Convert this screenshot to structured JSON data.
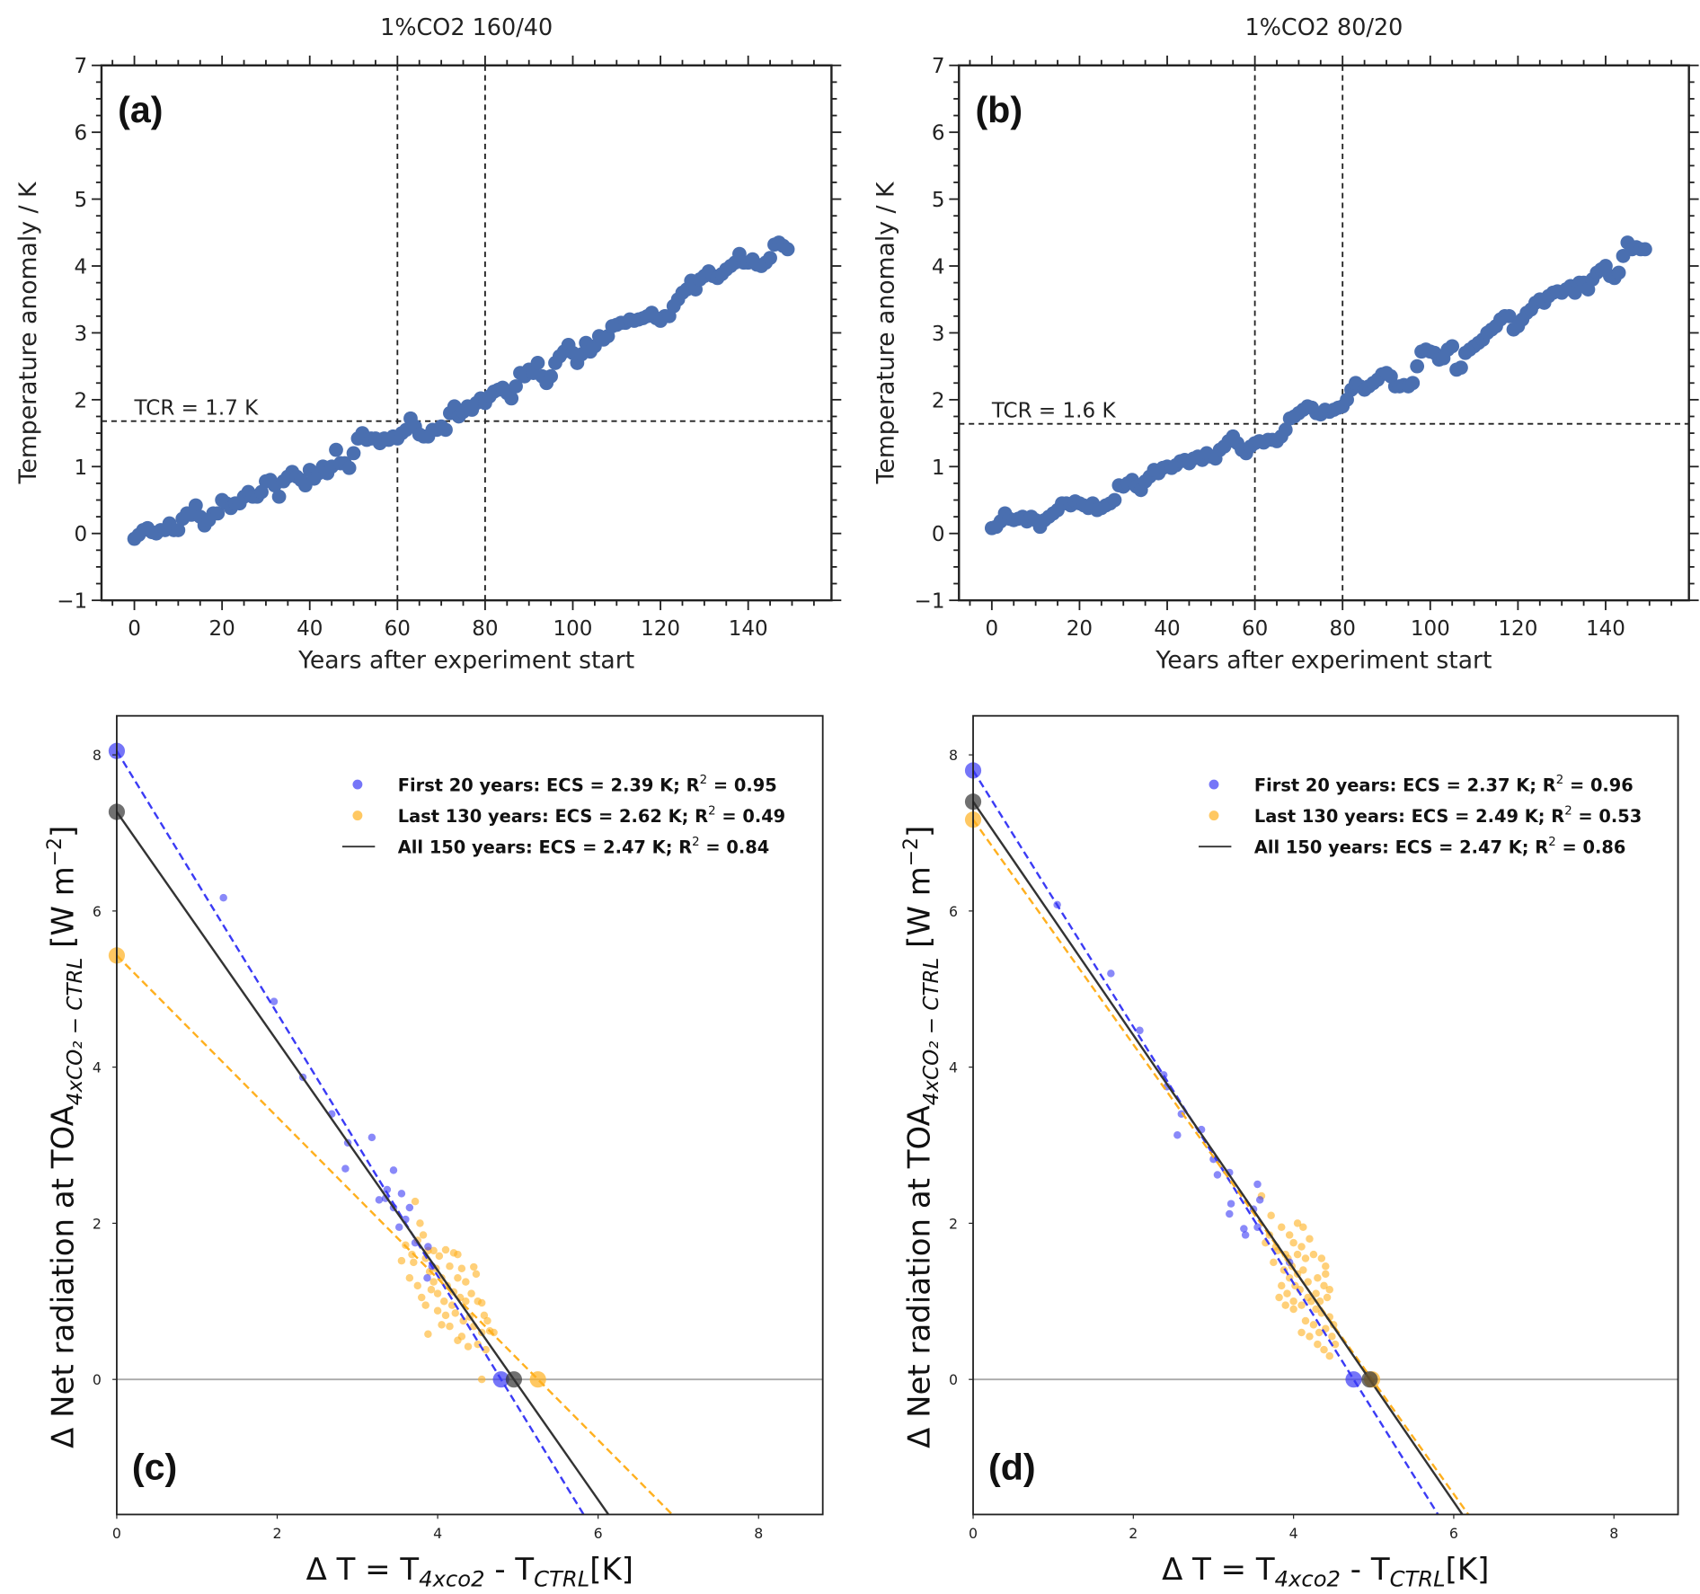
{
  "chart_data": [
    {
      "id": "a",
      "type": "scatter",
      "panel_label": "(a)",
      "title": "1%CO2 160/40",
      "xlabel": "Years after experiment start",
      "ylabel": "Temperature anomaly / K",
      "xlim": [
        -7.5,
        159
      ],
      "ylim": [
        -1,
        7
      ],
      "xticks": [
        0,
        20,
        40,
        60,
        80,
        100,
        120,
        140
      ],
      "yticks": [
        -1,
        0,
        1,
        2,
        3,
        4,
        5,
        6,
        7
      ],
      "ytick_labels": [
        "−1",
        "0",
        "1",
        "2",
        "3",
        "4",
        "5",
        "6",
        "7"
      ],
      "color": "#4a6fb0",
      "vlines": [
        60,
        80
      ],
      "hline": 1.68,
      "annotation": "TCR = 1.7 K",
      "values": [
        -0.08,
        -0.02,
        0.05,
        0.08,
        0.02,
        0.0,
        0.05,
        0.05,
        0.15,
        0.05,
        0.05,
        0.22,
        0.3,
        0.28,
        0.42,
        0.25,
        0.12,
        0.2,
        0.3,
        0.3,
        0.5,
        0.45,
        0.38,
        0.45,
        0.45,
        0.55,
        0.62,
        0.55,
        0.55,
        0.62,
        0.78,
        0.8,
        0.72,
        0.55,
        0.78,
        0.85,
        0.92,
        0.85,
        0.8,
        0.72,
        0.95,
        0.82,
        0.9,
        1.0,
        0.9,
        1.0,
        1.25,
        1.05,
        1.05,
        0.98,
        1.2,
        1.42,
        1.5,
        1.4,
        1.42,
        1.42,
        1.35,
        1.42,
        1.4,
        1.45,
        1.42,
        1.5,
        1.55,
        1.72,
        1.6,
        1.48,
        1.45,
        1.45,
        1.55,
        1.55,
        1.6,
        1.55,
        1.8,
        1.9,
        1.75,
        1.82,
        1.9,
        1.85,
        1.95,
        2.02,
        1.95,
        2.05,
        2.12,
        2.15,
        2.18,
        2.1,
        2.02,
        2.2,
        2.4,
        2.35,
        2.45,
        2.4,
        2.55,
        2.35,
        2.25,
        2.35,
        2.55,
        2.65,
        2.72,
        2.82,
        2.7,
        2.55,
        2.68,
        2.85,
        2.72,
        2.8,
        2.95,
        2.9,
        2.95,
        3.1,
        3.12,
        3.15,
        3.15,
        3.2,
        3.18,
        3.2,
        3.22,
        3.25,
        3.3,
        3.22,
        3.18,
        3.25,
        3.25,
        3.4,
        3.5,
        3.6,
        3.65,
        3.78,
        3.65,
        3.8,
        3.85,
        3.92,
        3.85,
        3.82,
        3.88,
        3.95,
        4.0,
        4.05,
        4.18,
        4.05,
        4.05,
        4.1,
        4.02,
        4.0,
        4.05,
        4.12,
        4.32,
        4.35,
        4.3,
        4.25
      ]
    },
    {
      "id": "b",
      "type": "scatter",
      "panel_label": "(b)",
      "title": "1%CO2 80/20",
      "xlabel": "Years after experiment start",
      "ylabel": "Temperature anomaly / K",
      "xlim": [
        -7.5,
        159
      ],
      "ylim": [
        -1,
        7
      ],
      "xticks": [
        0,
        20,
        40,
        60,
        80,
        100,
        120,
        140
      ],
      "yticks": [
        -1,
        0,
        1,
        2,
        3,
        4,
        5,
        6,
        7
      ],
      "ytick_labels": [
        "−1",
        "0",
        "1",
        "2",
        "3",
        "4",
        "5",
        "6",
        "7"
      ],
      "color": "#4a6fb0",
      "vlines": [
        60,
        80
      ],
      "hline": 1.64,
      "annotation": "TCR = 1.6 K",
      "values": [
        0.08,
        0.1,
        0.18,
        0.3,
        0.22,
        0.2,
        0.22,
        0.25,
        0.18,
        0.25,
        0.2,
        0.1,
        0.2,
        0.25,
        0.3,
        0.35,
        0.45,
        0.45,
        0.42,
        0.48,
        0.45,
        0.42,
        0.38,
        0.45,
        0.35,
        0.38,
        0.42,
        0.45,
        0.5,
        0.72,
        0.7,
        0.75,
        0.8,
        0.7,
        0.65,
        0.78,
        0.85,
        0.95,
        0.9,
        0.98,
        1.0,
        0.98,
        1.02,
        1.08,
        1.1,
        1.05,
        1.12,
        1.15,
        1.1,
        1.2,
        1.15,
        1.12,
        1.25,
        1.3,
        1.38,
        1.45,
        1.35,
        1.25,
        1.2,
        1.3,
        1.35,
        1.38,
        1.36,
        1.4,
        1.4,
        1.38,
        1.45,
        1.55,
        1.72,
        1.75,
        1.8,
        1.85,
        1.9,
        1.88,
        1.8,
        1.78,
        1.85,
        1.82,
        1.85,
        1.88,
        1.9,
        2.0,
        2.15,
        2.25,
        2.2,
        2.15,
        2.2,
        2.25,
        2.3,
        2.38,
        2.4,
        2.35,
        2.2,
        2.2,
        2.22,
        2.2,
        2.25,
        2.5,
        2.72,
        2.75,
        2.72,
        2.7,
        2.6,
        2.62,
        2.75,
        2.8,
        2.45,
        2.48,
        2.7,
        2.75,
        2.8,
        2.85,
        2.9,
        3.0,
        3.05,
        3.1,
        3.2,
        3.25,
        3.25,
        3.05,
        3.1,
        3.2,
        3.3,
        3.35,
        3.45,
        3.5,
        3.45,
        3.55,
        3.6,
        3.62,
        3.6,
        3.65,
        3.7,
        3.6,
        3.75,
        3.75,
        3.65,
        3.8,
        3.9,
        3.95,
        4.0,
        3.85,
        3.82,
        3.9,
        4.15,
        4.35,
        4.25,
        4.28,
        4.25,
        4.25
      ]
    },
    {
      "id": "c",
      "type": "scatter",
      "panel_label": "(c)",
      "xlabel": {
        "pre": "Δ T = T",
        "sub1": "4xco2",
        "mid": " - T",
        "sub2": "CTRL",
        "post": "[K]"
      },
      "ylabel": {
        "pre": "Δ Net radiation at TOA",
        "sub": "4xCO₂ − CTRL",
        "post": " [W m",
        "sup": "−2",
        "end": "]"
      },
      "xlim": [
        0,
        8.8
      ],
      "ylim": [
        -1.73,
        8.5
      ],
      "xticks": [
        0,
        2,
        4,
        6,
        8
      ],
      "yticks": [
        0,
        2,
        4,
        6,
        8
      ],
      "zero_line_color": "#aaaaaa",
      "legend": {
        "placement": "top-right",
        "entries": [
          {
            "text": "First 20 years: ECS = 2.39 K; R",
            "sup": "2",
            "tail": " = 0.95",
            "color": "#3b3bf5",
            "kind": "marker"
          },
          {
            "text": "Last 130 years: ECS = 2.62 K; R",
            "sup": "2",
            "tail": " = 0.49",
            "color": "#ffb01f",
            "kind": "marker"
          },
          {
            "text": "All 150 years: ECS = 2.47 K; R",
            "sup": "2",
            "tail": " = 0.84",
            "color": "#333333",
            "kind": "line"
          }
        ]
      },
      "fits": [
        {
          "name": "First 20 years",
          "intercept": 8.05,
          "x_at_zero": 4.79,
          "color": "#3b3bf5",
          "dashed": true
        },
        {
          "name": "Last 130 years",
          "intercept": 5.43,
          "x_at_zero": 5.25,
          "color": "#ffb01f",
          "dashed": true
        },
        {
          "name": "All 150 years",
          "intercept": 7.27,
          "x_at_zero": 4.95,
          "color": "#333333",
          "dashed": false
        }
      ],
      "first20": [
        [
          1.33,
          6.17
        ],
        [
          1.96,
          4.84
        ],
        [
          2.32,
          3.87
        ],
        [
          2.68,
          3.4
        ],
        [
          2.88,
          3.03
        ],
        [
          2.85,
          2.7
        ],
        [
          3.18,
          3.1
        ],
        [
          3.27,
          2.3
        ],
        [
          3.37,
          2.43
        ],
        [
          3.45,
          2.68
        ],
        [
          3.55,
          2.38
        ],
        [
          3.45,
          2.2
        ],
        [
          3.65,
          2.2
        ],
        [
          3.52,
          1.95
        ],
        [
          3.72,
          1.75
        ],
        [
          3.88,
          1.7
        ],
        [
          3.87,
          1.3
        ],
        [
          3.93,
          1.45
        ],
        [
          3.35,
          2.32
        ],
        [
          3.6,
          2.05
        ]
      ],
      "last130": [
        [
          3.72,
          2.28
        ],
        [
          3.78,
          2.0
        ],
        [
          3.6,
          1.72
        ],
        [
          3.75,
          1.78
        ],
        [
          3.82,
          1.85
        ],
        [
          3.88,
          1.65
        ],
        [
          3.55,
          1.52
        ],
        [
          3.7,
          1.5
        ],
        [
          3.85,
          1.55
        ],
        [
          3.95,
          1.65
        ],
        [
          4.02,
          1.58
        ],
        [
          4.1,
          1.66
        ],
        [
          4.2,
          1.62
        ],
        [
          4.25,
          1.6
        ],
        [
          3.65,
          1.3
        ],
        [
          3.75,
          1.2
        ],
        [
          3.9,
          1.38
        ],
        [
          3.98,
          1.42
        ],
        [
          4.05,
          1.3
        ],
        [
          4.12,
          1.2
        ],
        [
          4.15,
          1.45
        ],
        [
          4.3,
          1.42
        ],
        [
          4.45,
          1.44
        ],
        [
          4.48,
          1.35
        ],
        [
          3.8,
          1.05
        ],
        [
          3.92,
          1.15
        ],
        [
          4.0,
          1.1
        ],
        [
          4.08,
          1.0
        ],
        [
          4.2,
          1.12
        ],
        [
          4.28,
          1.05
        ],
        [
          4.35,
          1.0
        ],
        [
          4.5,
          1.0
        ],
        [
          4.55,
          0.98
        ],
        [
          3.85,
          0.95
        ],
        [
          4.0,
          0.88
        ],
        [
          4.1,
          0.82
        ],
        [
          4.22,
          0.85
        ],
        [
          4.32,
          0.75
        ],
        [
          4.4,
          0.8
        ],
        [
          4.45,
          0.68
        ],
        [
          4.58,
          0.82
        ],
        [
          4.62,
          0.75
        ],
        [
          4.7,
          0.6
        ],
        [
          3.88,
          0.58
        ],
        [
          4.05,
          0.7
        ],
        [
          4.15,
          0.68
        ],
        [
          4.25,
          0.5
        ],
        [
          4.3,
          0.55
        ],
        [
          4.38,
          0.42
        ],
        [
          4.5,
          0.45
        ],
        [
          4.6,
          0.38
        ],
        [
          4.55,
          0.6
        ],
        [
          4.18,
          0.95
        ],
        [
          4.42,
          1.1
        ],
        [
          4.35,
          1.25
        ],
        [
          3.95,
          1.25
        ],
        [
          3.68,
          1.6
        ],
        [
          4.55,
          0.0
        ],
        [
          4.65,
          0.62
        ],
        [
          4.25,
          1.3
        ]
      ]
    },
    {
      "id": "d",
      "type": "scatter",
      "panel_label": "(d)",
      "xlabel": {
        "pre": "Δ T = T",
        "sub1": "4xco2",
        "mid": " - T",
        "sub2": "CTRL",
        "post": "[K]"
      },
      "ylabel": {
        "pre": "Δ Net radiation at TOA",
        "sub": "4xCO₂ − CTRL",
        "post": " [W m",
        "sup": "−2",
        "end": "]"
      },
      "xlim": [
        0,
        8.8
      ],
      "ylim": [
        -1.73,
        8.5
      ],
      "xticks": [
        0,
        2,
        4,
        6,
        8
      ],
      "yticks": [
        0,
        2,
        4,
        6,
        8
      ],
      "zero_line_color": "#aaaaaa",
      "legend": {
        "placement": "top-right",
        "entries": [
          {
            "text": "First 20 years: ECS = 2.37 K; R",
            "sup": "2",
            "tail": " = 0.96",
            "color": "#3b3bf5",
            "kind": "marker"
          },
          {
            "text": "Last 130 years: ECS = 2.49 K; R",
            "sup": "2",
            "tail": " = 0.53",
            "color": "#ffb01f",
            "kind": "marker"
          },
          {
            "text": "All 150 years: ECS = 2.47 K; R",
            "sup": "2",
            "tail": " = 0.86",
            "color": "#333333",
            "kind": "line"
          }
        ]
      },
      "fits": [
        {
          "name": "First 20 years",
          "intercept": 7.8,
          "x_at_zero": 4.75,
          "color": "#3b3bf5",
          "dashed": true
        },
        {
          "name": "Last 130 years",
          "intercept": 7.17,
          "x_at_zero": 4.98,
          "color": "#ffb01f",
          "dashed": true
        },
        {
          "name": "All 150 years",
          "intercept": 7.4,
          "x_at_zero": 4.95,
          "color": "#333333",
          "dashed": false
        }
      ],
      "first20": [
        [
          1.05,
          6.08
        ],
        [
          1.72,
          5.2
        ],
        [
          2.08,
          4.47
        ],
        [
          2.38,
          3.9
        ],
        [
          2.42,
          3.75
        ],
        [
          2.55,
          3.13
        ],
        [
          2.6,
          3.4
        ],
        [
          2.85,
          3.2
        ],
        [
          3.0,
          2.82
        ],
        [
          3.05,
          2.62
        ],
        [
          3.2,
          2.65
        ],
        [
          3.22,
          2.25
        ],
        [
          3.2,
          2.12
        ],
        [
          3.38,
          1.93
        ],
        [
          3.4,
          1.85
        ],
        [
          3.5,
          2.18
        ],
        [
          3.55,
          2.5
        ],
        [
          3.58,
          2.3
        ],
        [
          3.55,
          1.95
        ],
        [
          3.95,
          1.5
        ]
      ],
      "last130": [
        [
          3.6,
          2.35
        ],
        [
          3.72,
          2.1
        ],
        [
          3.85,
          1.95
        ],
        [
          3.95,
          1.85
        ],
        [
          4.05,
          2.0
        ],
        [
          4.12,
          1.95
        ],
        [
          3.65,
          1.75
        ],
        [
          3.8,
          1.65
        ],
        [
          3.9,
          1.6
        ],
        [
          4.0,
          1.75
        ],
        [
          4.1,
          1.7
        ],
        [
          4.2,
          1.8
        ],
        [
          3.75,
          1.5
        ],
        [
          3.88,
          1.4
        ],
        [
          3.98,
          1.45
        ],
        [
          4.05,
          1.35
        ],
        [
          4.15,
          1.55
        ],
        [
          4.25,
          1.6
        ],
        [
          4.35,
          1.55
        ],
        [
          4.4,
          1.45
        ],
        [
          3.85,
          1.2
        ],
        [
          3.92,
          1.1
        ],
        [
          4.0,
          1.0
        ],
        [
          4.08,
          1.15
        ],
        [
          4.18,
          1.25
        ],
        [
          4.3,
          1.3
        ],
        [
          4.38,
          1.2
        ],
        [
          4.42,
          1.05
        ],
        [
          3.9,
          0.95
        ],
        [
          4.0,
          0.9
        ],
        [
          4.1,
          0.95
        ],
        [
          4.22,
          1.0
        ],
        [
          4.28,
          0.9
        ],
        [
          4.35,
          0.85
        ],
        [
          4.45,
          0.8
        ],
        [
          4.15,
          0.75
        ],
        [
          4.25,
          0.7
        ],
        [
          4.32,
          0.6
        ],
        [
          4.4,
          0.65
        ],
        [
          4.48,
          0.55
        ],
        [
          4.3,
          0.45
        ],
        [
          4.38,
          0.38
        ],
        [
          4.45,
          0.3
        ],
        [
          4.52,
          0.45
        ],
        [
          4.2,
          0.55
        ],
        [
          3.95,
          1.3
        ],
        [
          4.05,
          1.6
        ],
        [
          3.7,
          1.85
        ],
        [
          4.12,
          1.4
        ],
        [
          4.28,
          1.1
        ],
        [
          3.82,
          1.05
        ],
        [
          4.5,
          0.7
        ],
        [
          4.18,
          1.05
        ],
        [
          4.4,
          1.35
        ],
        [
          3.78,
          1.7
        ],
        [
          4.02,
          1.2
        ],
        [
          4.1,
          0.6
        ],
        [
          4.33,
          1.0
        ],
        [
          4.45,
          1.15
        ],
        [
          3.93,
          1.55
        ]
      ]
    }
  ]
}
